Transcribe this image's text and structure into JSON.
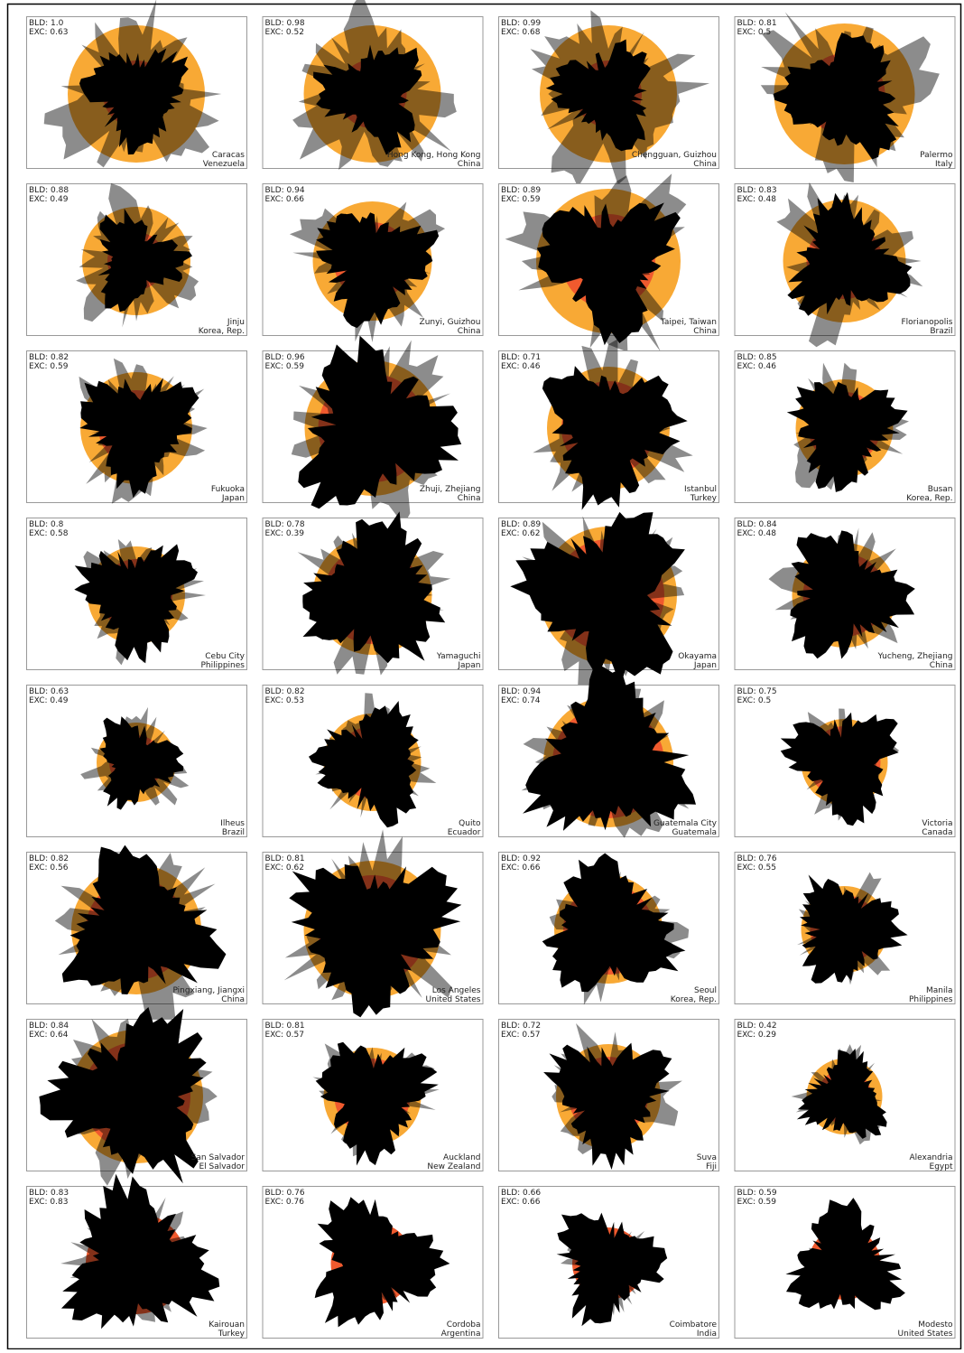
{
  "panels": [
    {
      "bld": "BLD: 1.0",
      "exc": "EXC: 0.63",
      "city": "Caracas",
      "country": "Venezuela"
    },
    {
      "bld": "BLD: 0.98",
      "exc": "EXC: 0.52",
      "city": "Hong Kong, Hong Kong",
      "country": "China"
    },
    {
      "bld": "BLD: 0.99",
      "exc": "EXC: 0.68",
      "city": "Chengguan, Guizhou",
      "country": "China"
    },
    {
      "bld": "BLD: 0.81",
      "exc": "EXC: 0.5",
      "city": "Palermo",
      "country": "Italy"
    },
    {
      "bld": "BLD: 0.88",
      "exc": "EXC: 0.49",
      "city": "Jinju",
      "country": "Korea, Rep."
    },
    {
      "bld": "BLD: 0.94",
      "exc": "EXC: 0.66",
      "city": "Zunyi, Guizhou",
      "country": "China"
    },
    {
      "bld": "BLD: 0.89",
      "exc": "EXC: 0.59",
      "city": "Taipei, Taiwan",
      "country": "China"
    },
    {
      "bld": "BLD: 0.83",
      "exc": "EXC: 0.48",
      "city": "Florianopolis",
      "country": "Brazil"
    },
    {
      "bld": "BLD: 0.82",
      "exc": "EXC: 0.59",
      "city": "Fukuoka",
      "country": "Japan"
    },
    {
      "bld": "BLD: 0.96",
      "exc": "EXC: 0.59",
      "city": "Zhuji, Zhejiang",
      "country": "China"
    },
    {
      "bld": "BLD: 0.71",
      "exc": "EXC: 0.46",
      "city": "Istanbul",
      "country": "Turkey"
    },
    {
      "bld": "BLD: 0.85",
      "exc": "EXC: 0.46",
      "city": "Busan",
      "country": "Korea, Rep."
    },
    {
      "bld": "BLD: 0.8",
      "exc": "EXC: 0.58",
      "city": "Cebu City",
      "country": "Philippines"
    },
    {
      "bld": "BLD: 0.78",
      "exc": "EXC: 0.39",
      "city": "Yamaguchi",
      "country": "Japan"
    },
    {
      "bld": "BLD: 0.89",
      "exc": "EXC: 0.62",
      "city": "Okayama",
      "country": "Japan"
    },
    {
      "bld": "BLD: 0.84",
      "exc": "EXC: 0.48",
      "city": "Yucheng, Zhejiang",
      "country": "China"
    },
    {
      "bld": "BLD: 0.63",
      "exc": "EXC: 0.49",
      "city": "Ilheus",
      "country": "Brazil"
    },
    {
      "bld": "BLD: 0.82",
      "exc": "EXC: 0.53",
      "city": "Quito",
      "country": "Ecuador"
    },
    {
      "bld": "BLD: 0.94",
      "exc": "EXC: 0.74",
      "city": "Guatemala City",
      "country": "Guatemala"
    },
    {
      "bld": "BLD: 0.75",
      "exc": "EXC: 0.5",
      "city": "Victoria",
      "country": "Canada"
    },
    {
      "bld": "BLD: 0.82",
      "exc": "EXC: 0.56",
      "city": "Pingxiang, Jiangxi",
      "country": "China"
    },
    {
      "bld": "BLD: 0.81",
      "exc": "EXC: 0.62",
      "city": "Los Angeles",
      "country": "United States"
    },
    {
      "bld": "BLD: 0.92",
      "exc": "EXC: 0.66",
      "city": "Seoul",
      "country": "Korea, Rep."
    },
    {
      "bld": "BLD: 0.76",
      "exc": "EXC: 0.55",
      "city": "Manila",
      "country": "Philippines"
    },
    {
      "bld": "BLD: 0.84",
      "exc": "EXC: 0.64",
      "city": "San Salvador",
      "country": "El Salvador"
    },
    {
      "bld": "BLD: 0.81",
      "exc": "EXC: 0.57",
      "city": "Auckland",
      "country": "New Zealand"
    },
    {
      "bld": "BLD: 0.72",
      "exc": "EXC: 0.57",
      "city": "Suva",
      "country": "Fiji"
    },
    {
      "bld": "BLD: 0.42",
      "exc": "EXC: 0.29",
      "city": "Alexandria",
      "country": "Egypt"
    },
    {
      "bld": "BLD: 0.83",
      "exc": "EXC: 0.83",
      "city": "Kairouan",
      "country": "Turkey"
    },
    {
      "bld": "BLD: 0.76",
      "exc": "EXC: 0.76",
      "city": "Cordoba",
      "country": "Argentina"
    },
    {
      "bld": "BLD: 0.66",
      "exc": "EXC: 0.66",
      "city": "Coimbatore",
      "country": "India"
    },
    {
      "bld": "BLD: 0.59",
      "exc": "EXC: 0.59",
      "city": "Modesto",
      "country": "United States"
    }
  ]
}
